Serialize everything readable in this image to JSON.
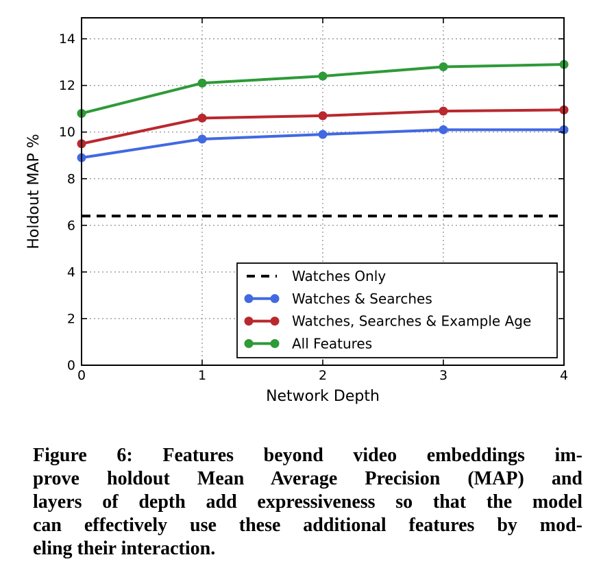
{
  "chart_data": {
    "type": "line",
    "x": [
      0,
      1,
      2,
      3,
      4
    ],
    "xticks": [
      0,
      1,
      2,
      3,
      4
    ],
    "yticks": [
      0,
      2,
      4,
      6,
      8,
      10,
      12,
      14
    ],
    "xlim": [
      0,
      4
    ],
    "ylim": [
      0,
      14.9
    ],
    "grid": true,
    "grid_color": "#999999",
    "xlabel": "Network Depth",
    "ylabel": "Holdout MAP %",
    "legend_position": "lower right inside",
    "series": [
      {
        "name": "Watches Only",
        "color": "#000000",
        "line_style": "dashed",
        "marker": false,
        "values": [
          6.4,
          6.4,
          6.4,
          6.4,
          6.4
        ]
      },
      {
        "name": "Watches & Searches",
        "color": "#4169e1",
        "line_style": "solid",
        "marker": true,
        "values": [
          8.9,
          9.7,
          9.9,
          10.1,
          10.1
        ]
      },
      {
        "name": "Watches, Searches & Example Age",
        "color": "#b9282e",
        "line_style": "solid",
        "marker": true,
        "values": [
          9.5,
          10.6,
          10.7,
          10.9,
          10.95
        ]
      },
      {
        "name": "All Features",
        "color": "#2e9a38",
        "line_style": "solid",
        "marker": true,
        "values": [
          10.8,
          12.1,
          12.4,
          12.8,
          12.9
        ]
      }
    ]
  },
  "caption": {
    "lines": [
      "Figure 6:  Features beyond video embeddings im-",
      "prove holdout Mean Average Precision (MAP) and",
      "layers of depth add expressiveness so that the model",
      "can effectively use these additional features by mod-",
      "eling their interaction."
    ],
    "full_text": "Figure 6: Features beyond video embeddings improve holdout Mean Average Precision (MAP) and layers of depth add expressiveness so that the model can effectively use these additional features by modeling their interaction."
  }
}
